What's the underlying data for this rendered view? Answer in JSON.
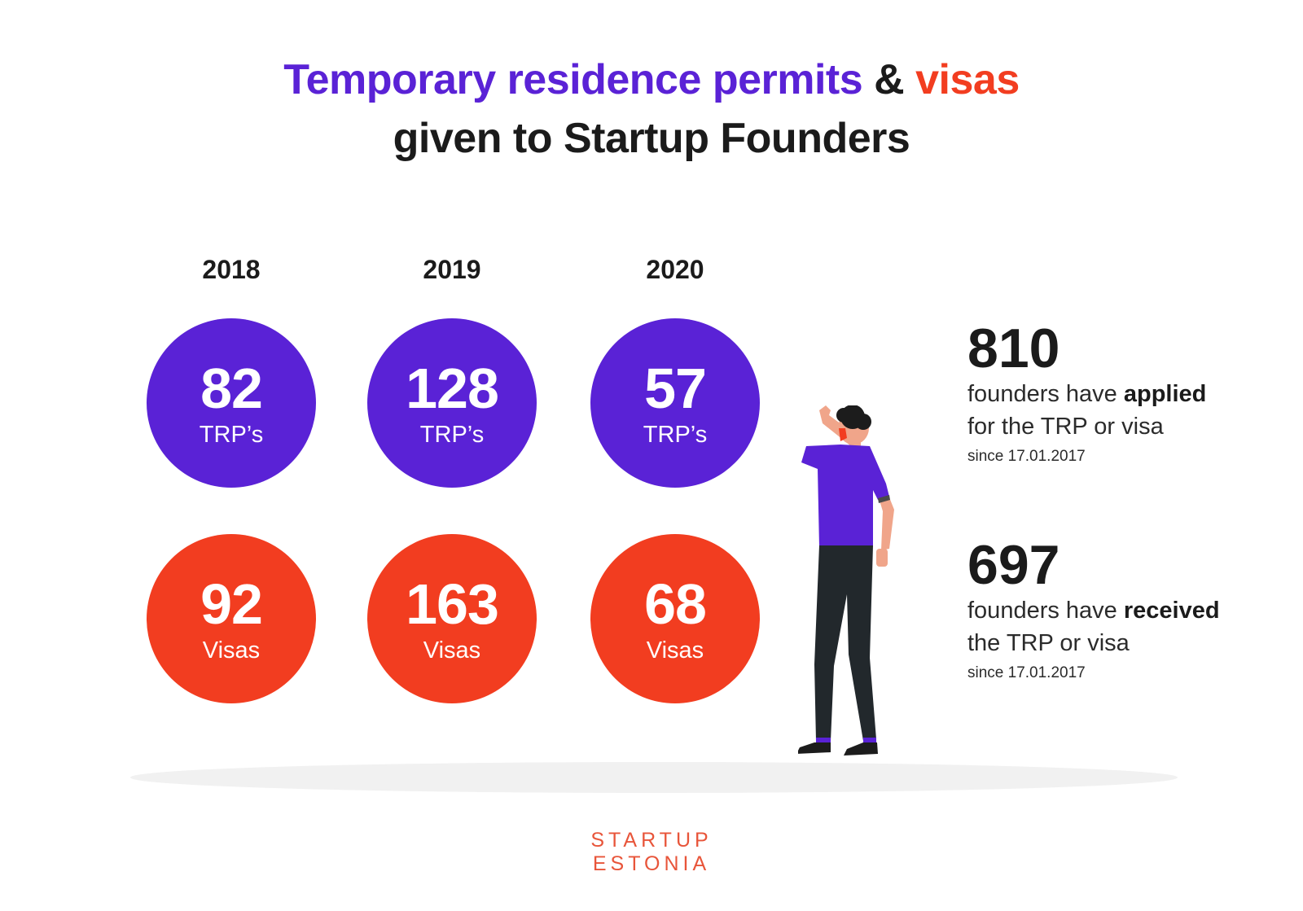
{
  "title": {
    "part1": "Temporary residence permits",
    "amp": "&",
    "part2": "visas",
    "line2": "given to Startup Founders"
  },
  "colors": {
    "trp": "#5a22d6",
    "visa": "#f23d20",
    "text": "#1b1b1b"
  },
  "chart_data": {
    "type": "table",
    "categories": [
      "2018",
      "2019",
      "2020"
    ],
    "series": [
      {
        "name": "TRP’s",
        "values": [
          82,
          128,
          57
        ]
      },
      {
        "name": "Visas",
        "values": [
          92,
          163,
          68
        ]
      }
    ]
  },
  "stats": [
    {
      "value": "810",
      "pre": "founders have ",
      "bold": "applied",
      "line2": "for the TRP or visa",
      "since": "since 17.01.2017"
    },
    {
      "value": "697",
      "pre": "founders have ",
      "bold": "received",
      "line2": "the TRP or visa",
      "since": "since 17.01.2017"
    }
  ],
  "logo": {
    "line1": "STARTUP",
    "line2": "ESTONIA"
  }
}
